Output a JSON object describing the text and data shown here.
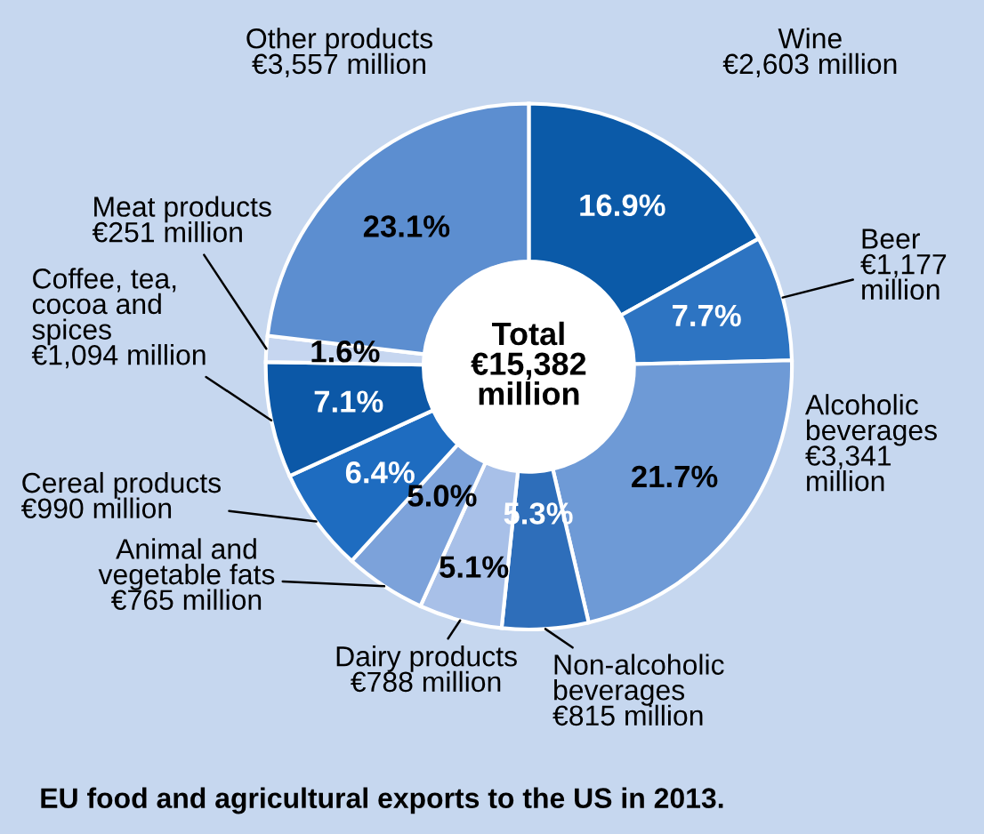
{
  "chart_data": {
    "type": "donut",
    "title": "EU food and agricultural exports to the US in 2013.",
    "categories": [
      "Wine\n€2,603 million",
      "Beer\n€1,177\nmillion",
      "Alcoholic\nbeverages\n€3,341\nmillion",
      "Non-alcoholic\nbeverages\n€815 million",
      "Dairy products\n€788 million",
      "Animal and\nvegetable fats\n€765 million",
      "Cereal products\n€990 million",
      "Coffee, tea,\ncocoa and\nspices\n€1,094 million",
      "Meat products\n€251 million",
      "Other products\n€3,557 million"
    ],
    "values": [
      16.9,
      7.7,
      21.7,
      5.3,
      5.1,
      5.0,
      6.4,
      7.1,
      1.6,
      23.1
    ],
    "value_labels": [
      "16.9%",
      "7.7%",
      "21.7%",
      "5.3%",
      "5.1%",
      "5.0%",
      "6.4%",
      "7.1%",
      "1.6%",
      "23.1%"
    ],
    "colors": [
      "#0b5aa8",
      "#2d74c2",
      "#6e9ad6",
      "#2e6eba",
      "#a8c0e8",
      "#7ca2da",
      "#1e6cc0",
      "#0c58a7",
      "#c6d6f0",
      "#5c8ed0"
    ],
    "annotations": [
      "Total\n€15,382\nmillion"
    ]
  }
}
